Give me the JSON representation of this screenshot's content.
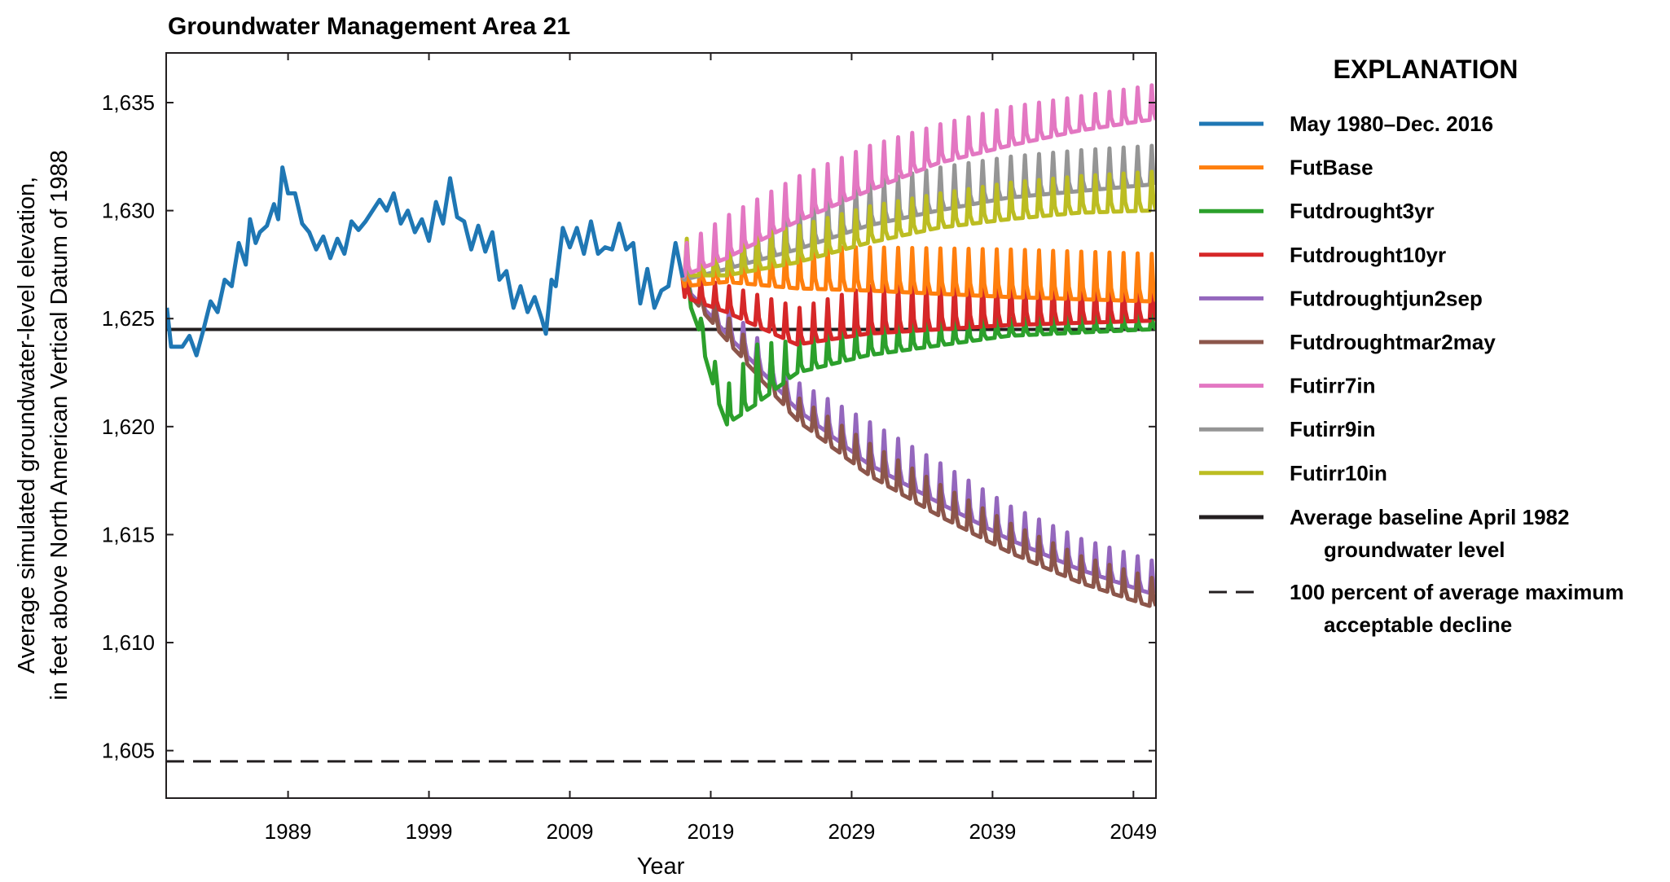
{
  "chart_data": {
    "type": "line",
    "title": "Groundwater Management Area 21",
    "xlabel": "Year",
    "ylabel": [
      "Average simulated groundwater-level elevation,",
      "in feet above North American Vertical Datum of 1988"
    ],
    "xlim": [
      1980.35,
      2050.6
    ],
    "ylim": [
      1602.8,
      1637.3
    ],
    "xticks": [
      1989,
      1999,
      2009,
      2019,
      2029,
      2039,
      2049
    ],
    "xtick_labels": [
      "1989",
      "1999",
      "2009",
      "2019",
      "2029",
      "2039",
      "2049"
    ],
    "yticks": [
      1605,
      1610,
      1615,
      1620,
      1625,
      1630,
      1635
    ],
    "ytick_labels": [
      "1,605",
      "1,610",
      "1,615",
      "1,620",
      "1,625",
      "1,630",
      "1,635"
    ],
    "grid": false,
    "legend_title": "EXPLANATION",
    "legend_placement": "right, outside plot",
    "historical": {
      "name": "May 1980–Dec. 2016",
      "color": "#1f77b4",
      "x": [
        1980.4,
        1980.7,
        1981.5,
        1982,
        1982.5,
        1983,
        1983.5,
        1984,
        1984.5,
        1985,
        1985.5,
        1986,
        1986.3,
        1986.7,
        1987,
        1987.5,
        1988,
        1988.3,
        1988.6,
        1989,
        1989.5,
        1990,
        1990.5,
        1991,
        1991.5,
        1992,
        1992.5,
        1993,
        1993.5,
        1994,
        1994.5,
        1995,
        1995.5,
        1996,
        1996.5,
        1997,
        1997.5,
        1998,
        1998.5,
        1999,
        1999.5,
        2000,
        2000.5,
        2001,
        2001.5,
        2002,
        2002.5,
        2003,
        2003.5,
        2004,
        2004.5,
        2005,
        2005.5,
        2006,
        2006.5,
        2007,
        2007.3,
        2007.7,
        2008,
        2008.5,
        2009,
        2009.5,
        2010,
        2010.5,
        2011,
        2011.5,
        2012,
        2012.5,
        2013,
        2013.5,
        2014,
        2014.5,
        2015,
        2015.5,
        2016,
        2016.5,
        2017
      ],
      "y": [
        1625.5,
        1623.7,
        1623.7,
        1624.2,
        1623.3,
        1624.5,
        1625.8,
        1625.3,
        1626.8,
        1626.5,
        1628.5,
        1627.5,
        1629.6,
        1628.5,
        1629.0,
        1629.3,
        1630.3,
        1629.6,
        1632.0,
        1630.8,
        1630.8,
        1629.4,
        1629.0,
        1628.2,
        1628.8,
        1627.8,
        1628.7,
        1628.0,
        1629.5,
        1629.1,
        1629.5,
        1630.0,
        1630.5,
        1630.0,
        1630.8,
        1629.4,
        1630.0,
        1629.0,
        1629.6,
        1628.6,
        1630.4,
        1629.4,
        1631.5,
        1629.7,
        1629.5,
        1628.2,
        1629.3,
        1628.1,
        1629.0,
        1626.8,
        1627.2,
        1625.5,
        1626.5,
        1625.3,
        1626.0,
        1625.0,
        1624.3,
        1626.8,
        1626.5,
        1629.2,
        1628.3,
        1629.2,
        1628.0,
        1629.5,
        1628.0,
        1628.3,
        1628.2,
        1629.4,
        1628.2,
        1628.5,
        1625.7,
        1627.3,
        1625.5,
        1626.3,
        1626.5,
        1628.5,
        1626.9
      ]
    },
    "series": [
      {
        "name": "FutBase",
        "color": "#ff7f0e",
        "years": [
          2017,
          2020,
          2025,
          2030,
          2040,
          2050
        ],
        "annual_peak": [
          1627.8,
          1628.3,
          1628.3,
          1628.3,
          1628.2,
          1628.0
        ],
        "annual_trough": [
          1626.5,
          1626.7,
          1626.4,
          1626.3,
          1626.0,
          1625.8
        ]
      },
      {
        "name": "Futdrought3yr",
        "color": "#2ca02c",
        "years": [
          2017,
          2018,
          2019,
          2020,
          2022,
          2025,
          2030,
          2040,
          2050
        ],
        "annual_peak": [
          1627.0,
          1625.0,
          1623.0,
          1622.0,
          1623.8,
          1624.0,
          1624.8,
          1625.0,
          1625.2
        ],
        "annual_trough": [
          1626.5,
          1624.5,
          1622.0,
          1620.1,
          1621.0,
          1622.5,
          1623.3,
          1624.2,
          1624.5
        ]
      },
      {
        "name": "Futdrought10yr",
        "color": "#d62728",
        "years": [
          2017,
          2020,
          2025,
          2030,
          2040,
          2050
        ],
        "annual_peak": [
          1627.0,
          1626.5,
          1625.5,
          1626.5,
          1627.0,
          1627.0
        ],
        "annual_trough": [
          1626.0,
          1625.3,
          1623.8,
          1624.3,
          1624.7,
          1624.9
        ]
      },
      {
        "name": "Futdroughtjun2sep",
        "color": "#9467bd",
        "years": [
          2017,
          2020,
          2025,
          2030,
          2035,
          2040,
          2045,
          2050
        ],
        "annual_peak": [
          1627.0,
          1625.5,
          1622.0,
          1620.2,
          1618.3,
          1616.3,
          1614.8,
          1613.8
        ],
        "annual_trough": [
          1626.5,
          1624.3,
          1620.8,
          1618.3,
          1616.5,
          1614.8,
          1613.4,
          1612.3
        ]
      },
      {
        "name": "Futdroughtmar2may",
        "color": "#8c564b",
        "years": [
          2017,
          2020,
          2025,
          2030,
          2035,
          2040,
          2045,
          2050
        ],
        "annual_peak": [
          1626.8,
          1625.0,
          1621.3,
          1619.2,
          1617.3,
          1615.5,
          1614.0,
          1613.0
        ],
        "annual_trough": [
          1626.4,
          1624.0,
          1620.3,
          1617.8,
          1615.9,
          1614.2,
          1612.8,
          1611.7
        ]
      },
      {
        "name": "Futirr7in",
        "color": "#e377c2",
        "years": [
          2017,
          2020,
          2025,
          2030,
          2035,
          2040,
          2045,
          2050
        ],
        "annual_peak": [
          1628.5,
          1629.8,
          1631.6,
          1633.0,
          1634.0,
          1634.8,
          1635.3,
          1635.8
        ],
        "annual_trough": [
          1627.0,
          1627.8,
          1629.5,
          1630.9,
          1632.2,
          1633.0,
          1633.7,
          1634.2
        ]
      },
      {
        "name": "Futirr9in",
        "color": "#959595",
        "years": [
          2017,
          2020,
          2025,
          2030,
          2035,
          2040,
          2045,
          2050
        ],
        "annual_peak": [
          1628.3,
          1629.0,
          1630.2,
          1631.3,
          1632.0,
          1632.5,
          1632.8,
          1633.0
        ],
        "annual_trough": [
          1626.8,
          1627.3,
          1628.2,
          1629.3,
          1630.0,
          1630.6,
          1630.9,
          1631.2
        ]
      },
      {
        "name": "Futirr10in",
        "color": "#bcbd22",
        "years": [
          2017,
          2020,
          2025,
          2030,
          2035,
          2040,
          2045,
          2050
        ],
        "annual_peak": [
          1628.7,
          1628.6,
          1629.3,
          1630.2,
          1630.8,
          1631.3,
          1631.6,
          1631.8
        ],
        "annual_trough": [
          1627.0,
          1627.0,
          1627.6,
          1628.5,
          1629.2,
          1629.6,
          1629.9,
          1630.0
        ]
      }
    ],
    "reference_lines": [
      {
        "name": "Average baseline April 1982",
        "name_line2": "groundwater level",
        "y": 1624.5,
        "style": "solid",
        "color": "#231f20"
      },
      {
        "name": "100 percent of average maximum",
        "name_line2": "acceptable decline",
        "y": 1604.5,
        "style": "dashed",
        "color": "#231f20"
      }
    ]
  }
}
